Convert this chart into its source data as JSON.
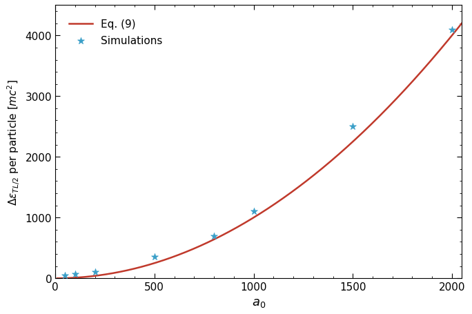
{
  "title": "",
  "xlabel": "$a_0$",
  "ylabel": "$\\Delta\\epsilon_{TL/2}$ per particle [$mc^2$]",
  "xlim": [
    0,
    2050
  ],
  "ylim": [
    0,
    4500
  ],
  "xticks": [
    0,
    500,
    1000,
    1500,
    2000
  ],
  "yticks": [
    0,
    1000,
    2000,
    3000,
    4000
  ],
  "curve_color": "#c0392b",
  "scatter_color": "#3a9fc8",
  "scatter_x": [
    50,
    100,
    200,
    500,
    800,
    1000,
    1500,
    2000
  ],
  "scatter_y": [
    50,
    72,
    105,
    350,
    700,
    1100,
    2500,
    4100
  ],
  "legend_entries": [
    "Eq. (9)",
    "Simulations"
  ],
  "curve_C": 0.001,
  "curve_power": 2.0,
  "figsize": [
    6.84,
    4.56
  ],
  "dpi": 100
}
